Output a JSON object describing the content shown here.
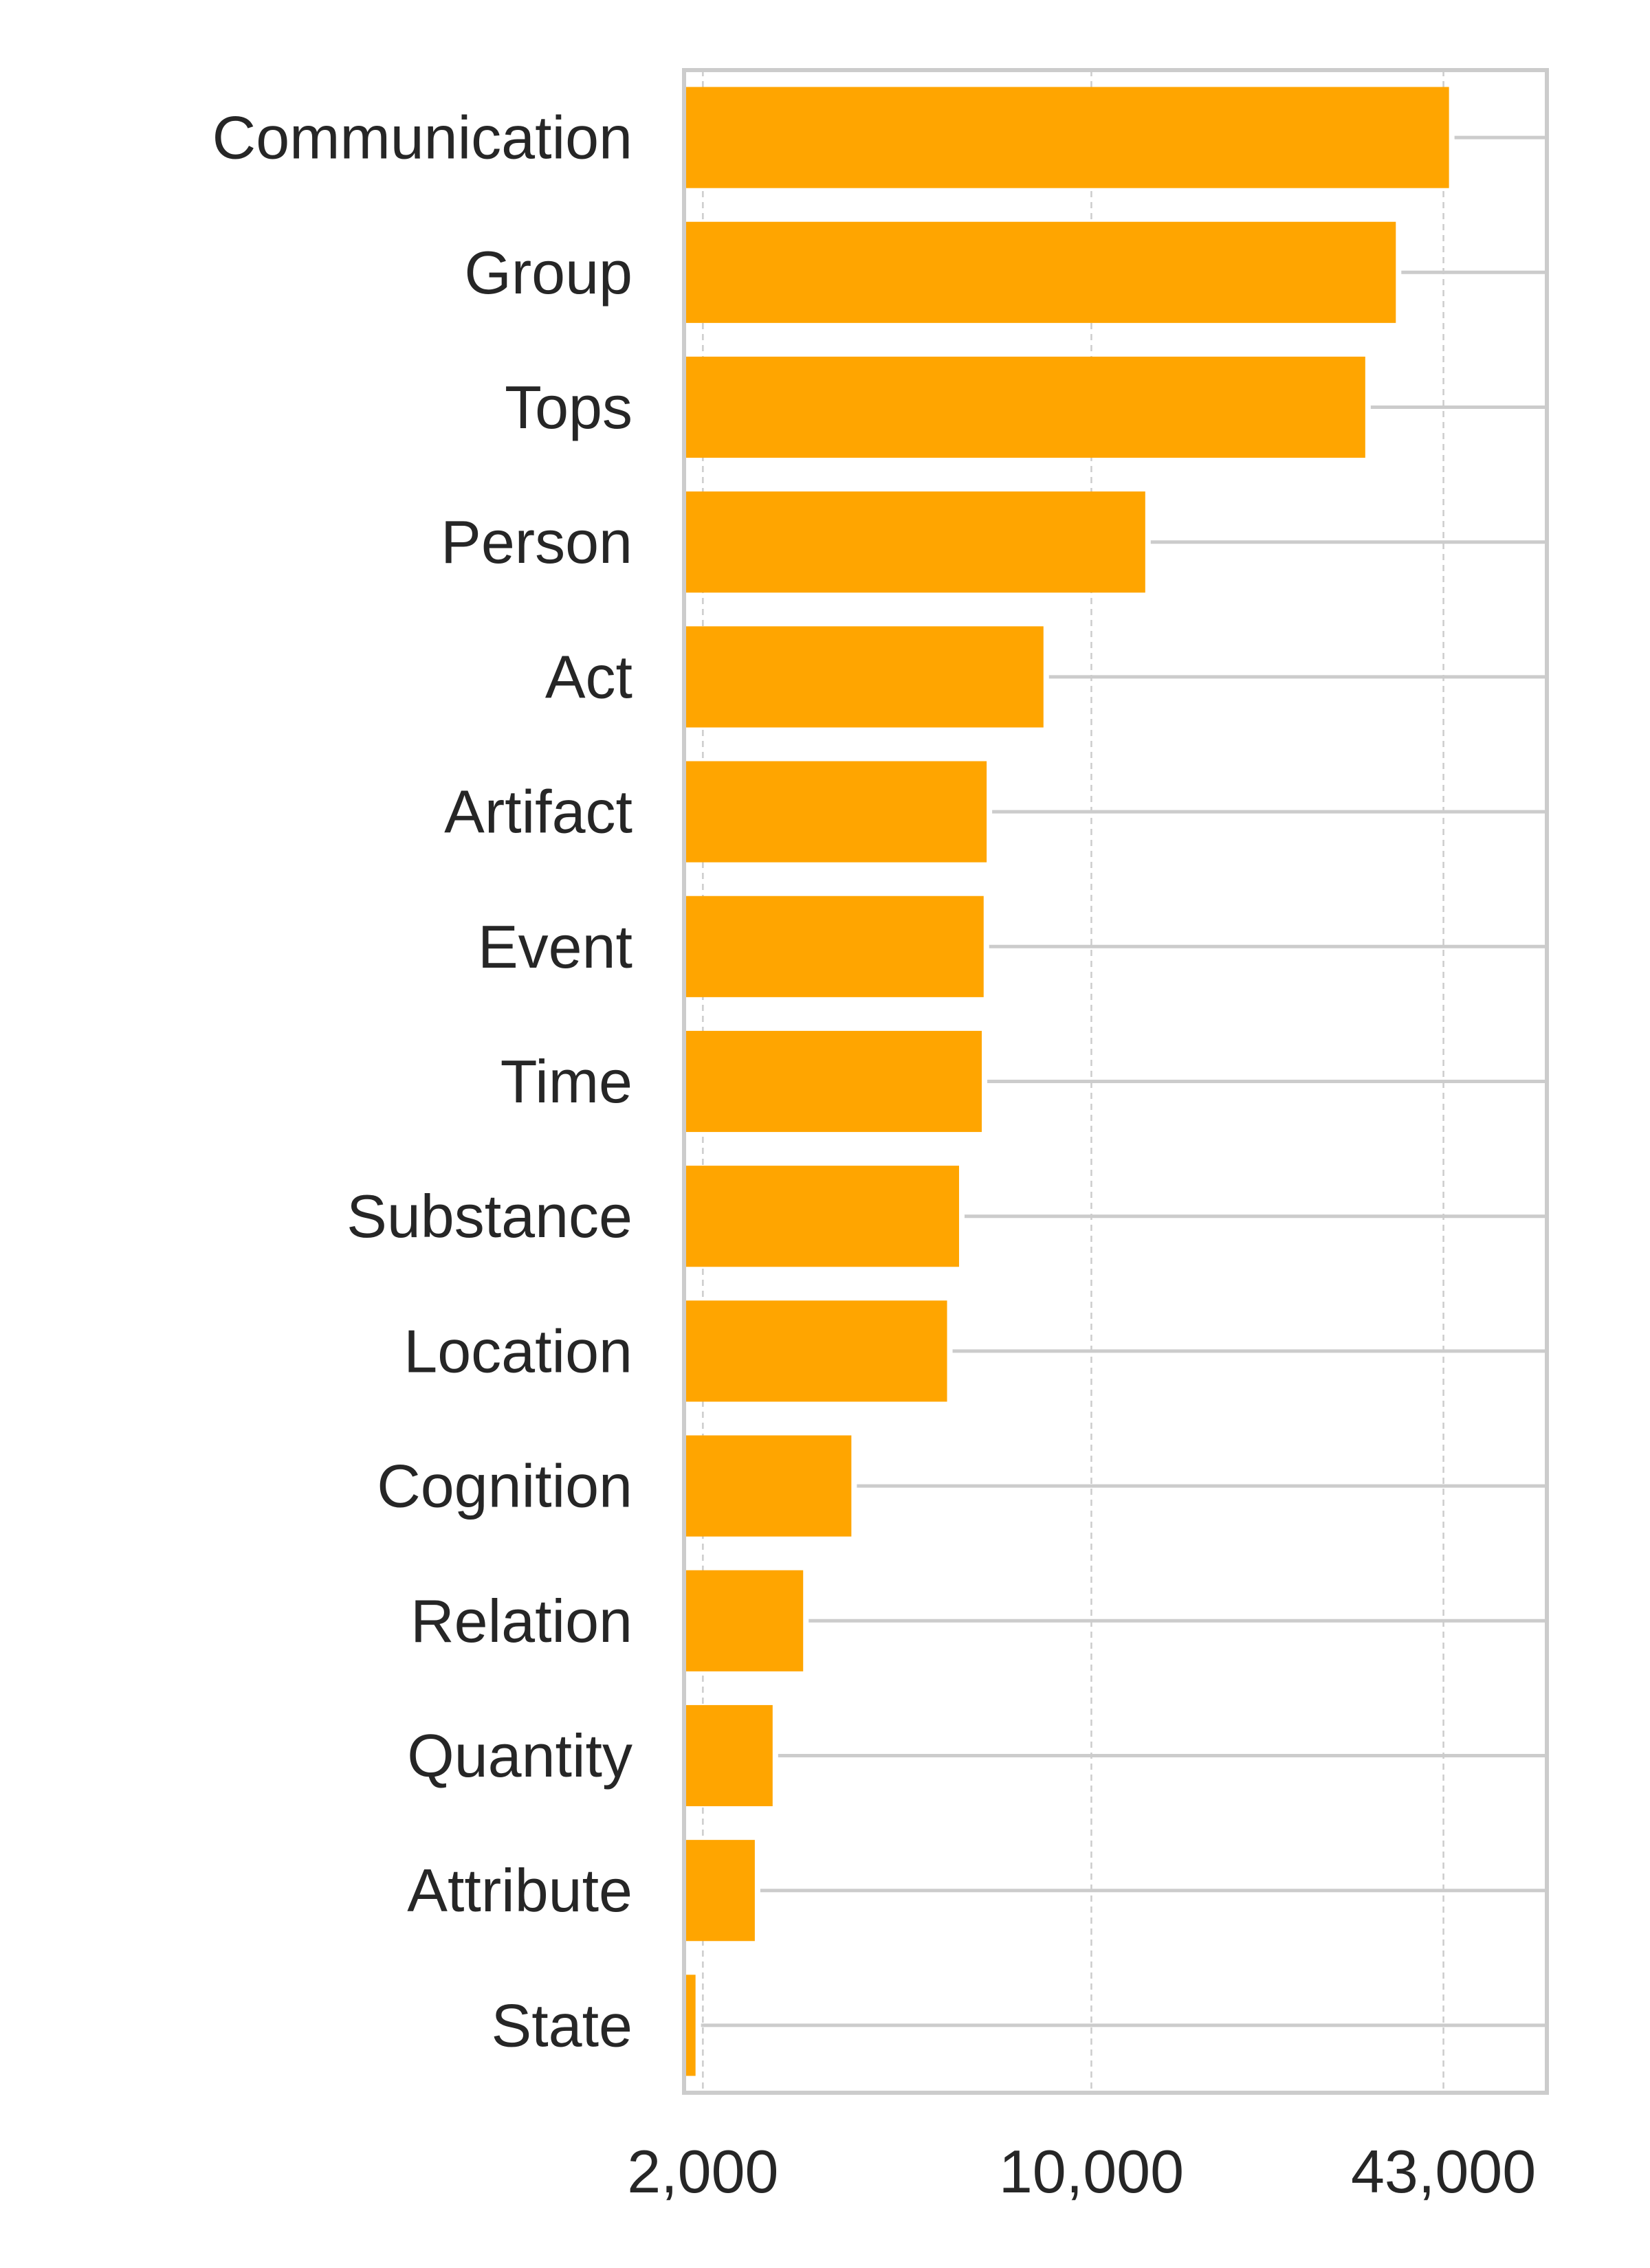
{
  "chart_data": {
    "type": "bar",
    "orientation": "horizontal",
    "scale": "log",
    "categories": [
      "Communication",
      "Group",
      "Tops",
      "Person",
      "Act",
      "Artifact",
      "Event",
      "Time",
      "Substance",
      "Location",
      "Cognition",
      "Relation",
      "Quantity",
      "Attribute",
      "State"
    ],
    "values": [
      44000,
      35300,
      31100,
      12500,
      8200,
      6480,
      6400,
      6350,
      5780,
      5500,
      3700,
      3030,
      2670,
      2480,
      1940
    ],
    "xticks": [
      2000,
      10000,
      43000
    ],
    "xtick_labels": [
      "2,000",
      "10,000",
      "43,000"
    ],
    "xlim": [
      1850,
      66000
    ],
    "title": "",
    "xlabel": "",
    "ylabel": "",
    "grid": true,
    "bar_color": "#FFA500",
    "grid_color": "#cccccc",
    "frame_color": "#cccccc"
  }
}
